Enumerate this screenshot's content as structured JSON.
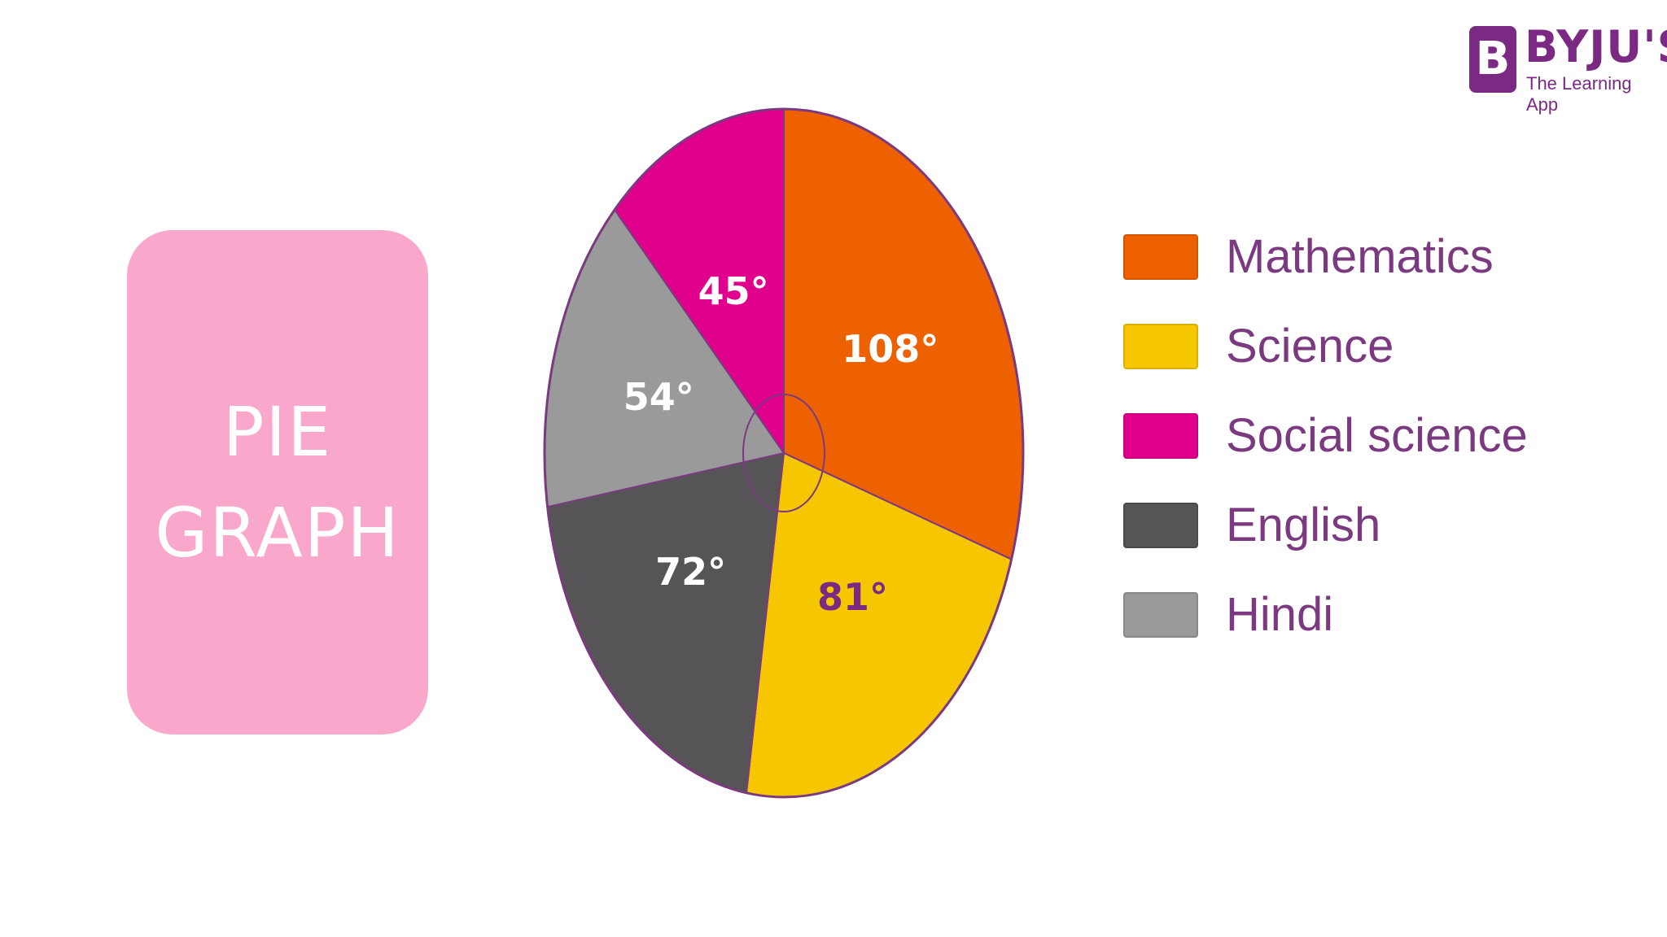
{
  "title_card": {
    "line1": "PIE",
    "line2": "GRAPH"
  },
  "logo": {
    "mark": "B",
    "brand": "BYJU'S",
    "tagline": "The Learning App"
  },
  "chart_data": {
    "type": "pie",
    "unit": "°",
    "slices": [
      {
        "name": "Mathematics",
        "value": 108,
        "label": "108°",
        "color": "#ee6100",
        "label_color": "#ffffff"
      },
      {
        "name": "Science",
        "value": 81,
        "label": "81°",
        "color": "#f6c600",
        "label_color": "#7b2a83"
      },
      {
        "name": "English",
        "value": 72,
        "label": "72°",
        "color": "#565456",
        "label_color": "#ffffff"
      },
      {
        "name": "Hindi",
        "value": 54,
        "label": "54°",
        "color": "#9a9a9a",
        "label_color": "#ffffff"
      },
      {
        "name": "Social science",
        "value": 45,
        "label": "45°",
        "color": "#e0008b",
        "label_color": "#ffffff"
      }
    ],
    "legend": [
      {
        "name": "Mathematics",
        "color": "#ee6100"
      },
      {
        "name": "Science",
        "color": "#f6c600"
      },
      {
        "name": "Social science",
        "color": "#e0008b"
      },
      {
        "name": "English",
        "color": "#565456"
      },
      {
        "name": "Hindi",
        "color": "#9a9a9a"
      }
    ],
    "legend_position": "right"
  }
}
